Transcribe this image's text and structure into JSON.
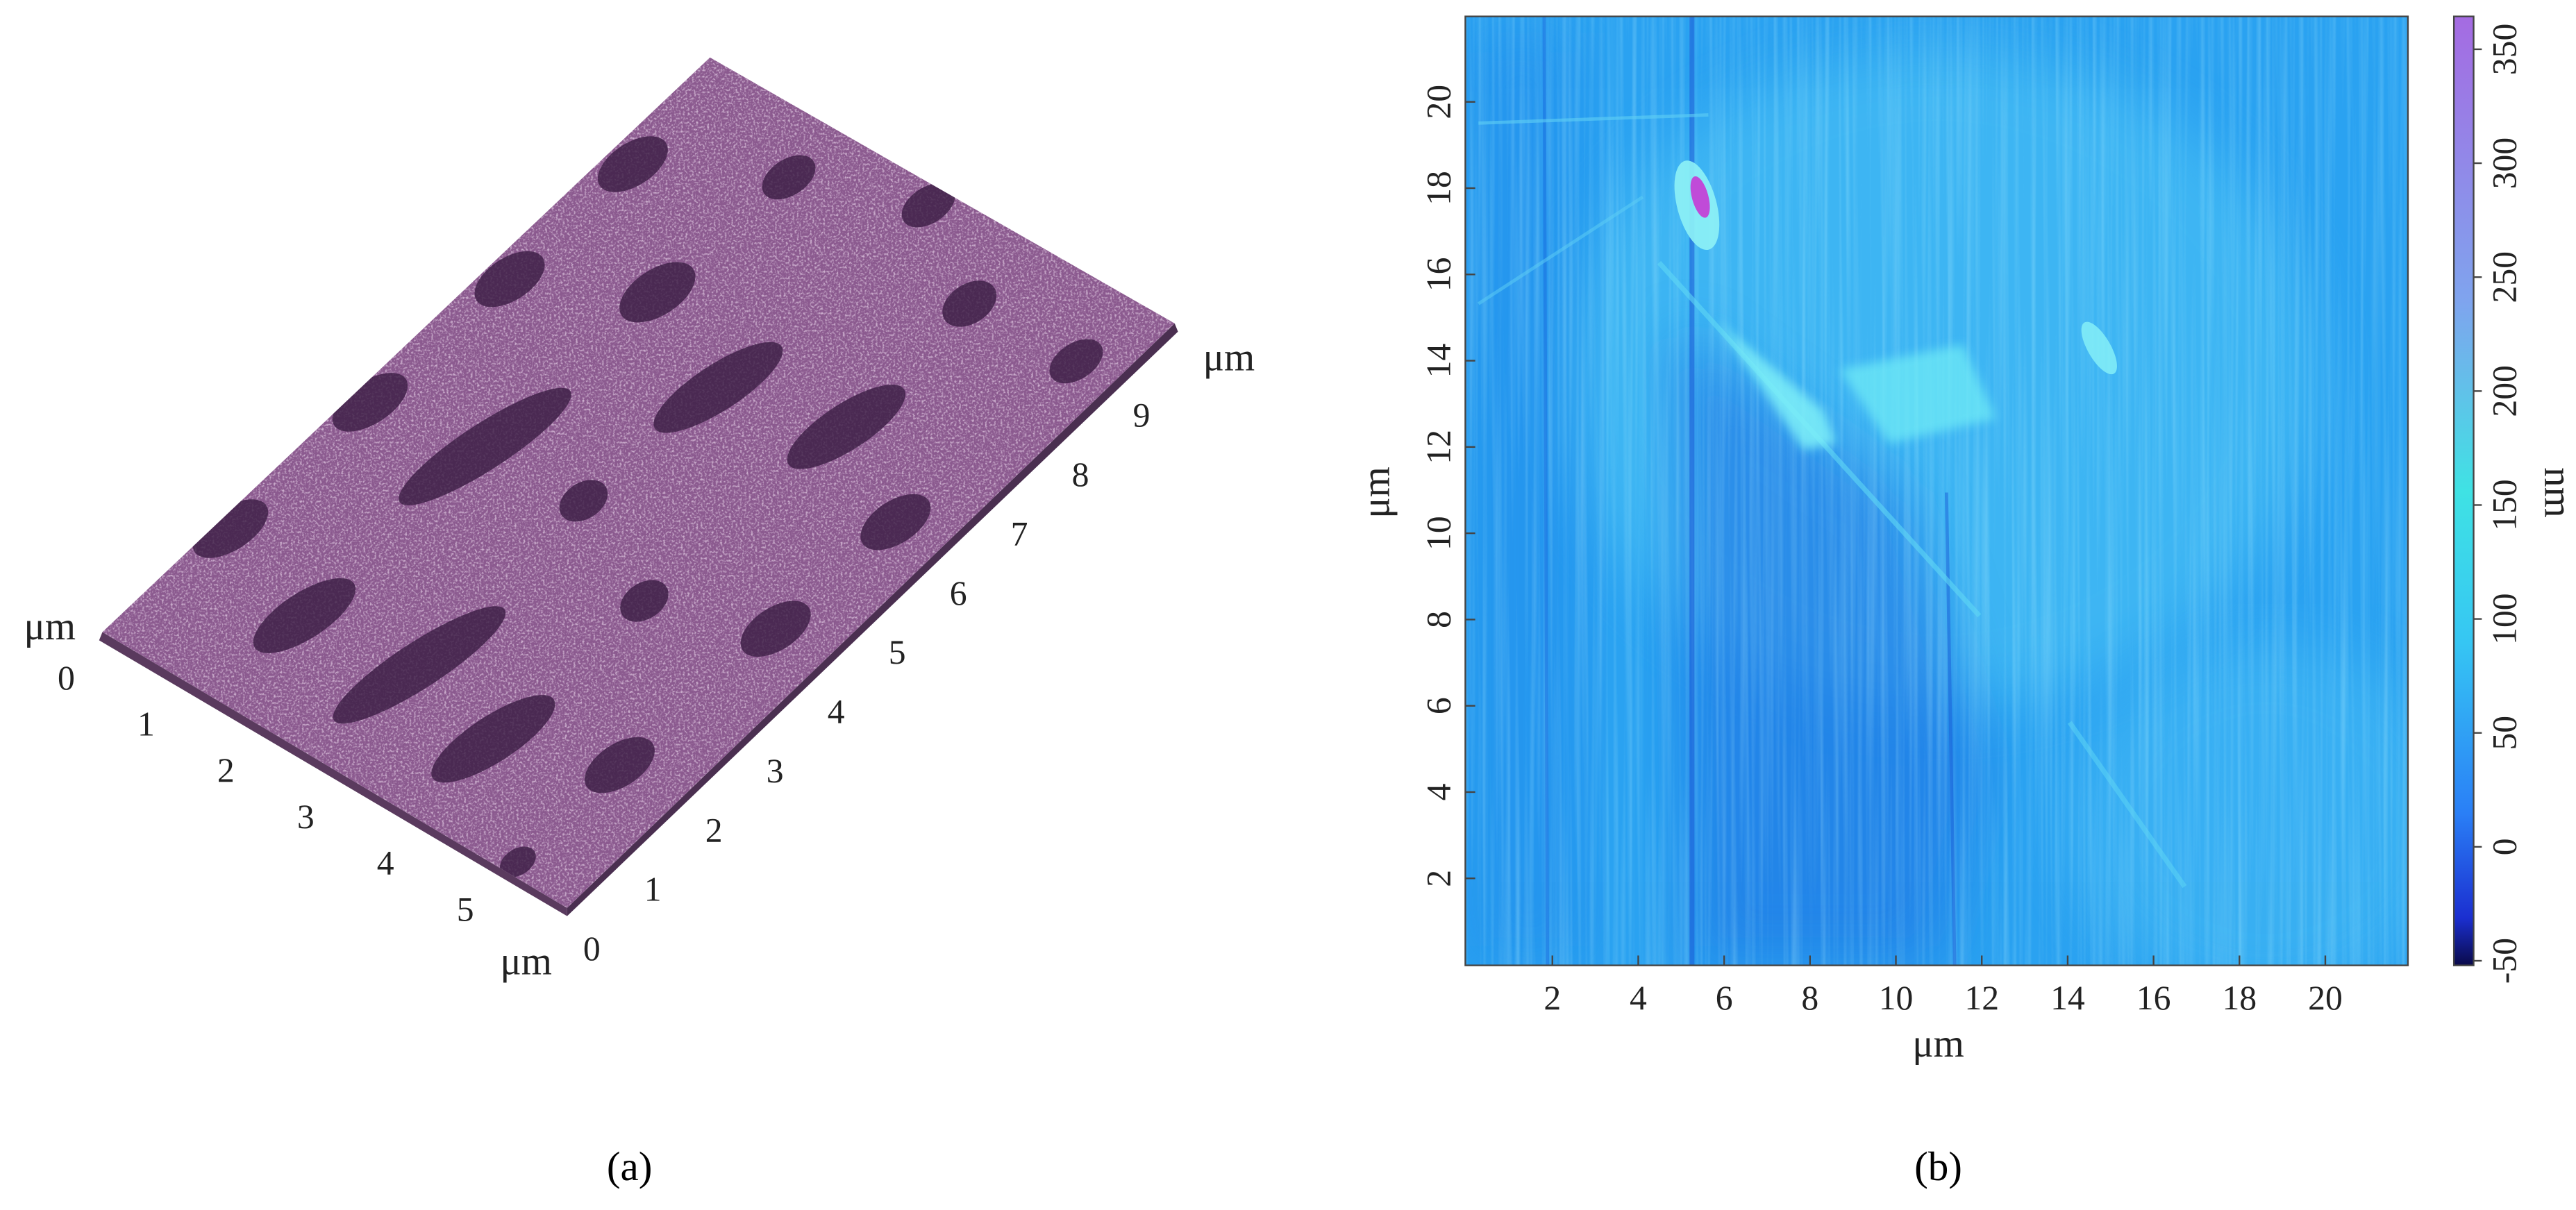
{
  "panels": [
    {
      "caption": "(a)",
      "units": [
        "μm",
        "μm",
        "μm"
      ],
      "left_axis_ticks": [
        0,
        1,
        2,
        3,
        4,
        5
      ],
      "right_axis_ticks": [
        0,
        1,
        2,
        3,
        4,
        5,
        6,
        7,
        8,
        9
      ]
    },
    {
      "caption": "(b)",
      "x_label": "μm",
      "y_label": "μm",
      "x_ticks": [
        2,
        4,
        6,
        8,
        10,
        12,
        14,
        16,
        18,
        20
      ],
      "y_ticks": [
        2,
        4,
        6,
        8,
        10,
        12,
        14,
        16,
        18,
        20
      ],
      "colorbar": {
        "label": "nm",
        "ticks": [
          350,
          300,
          250,
          200,
          150,
          100,
          50,
          0,
          -50
        ]
      }
    }
  ]
}
